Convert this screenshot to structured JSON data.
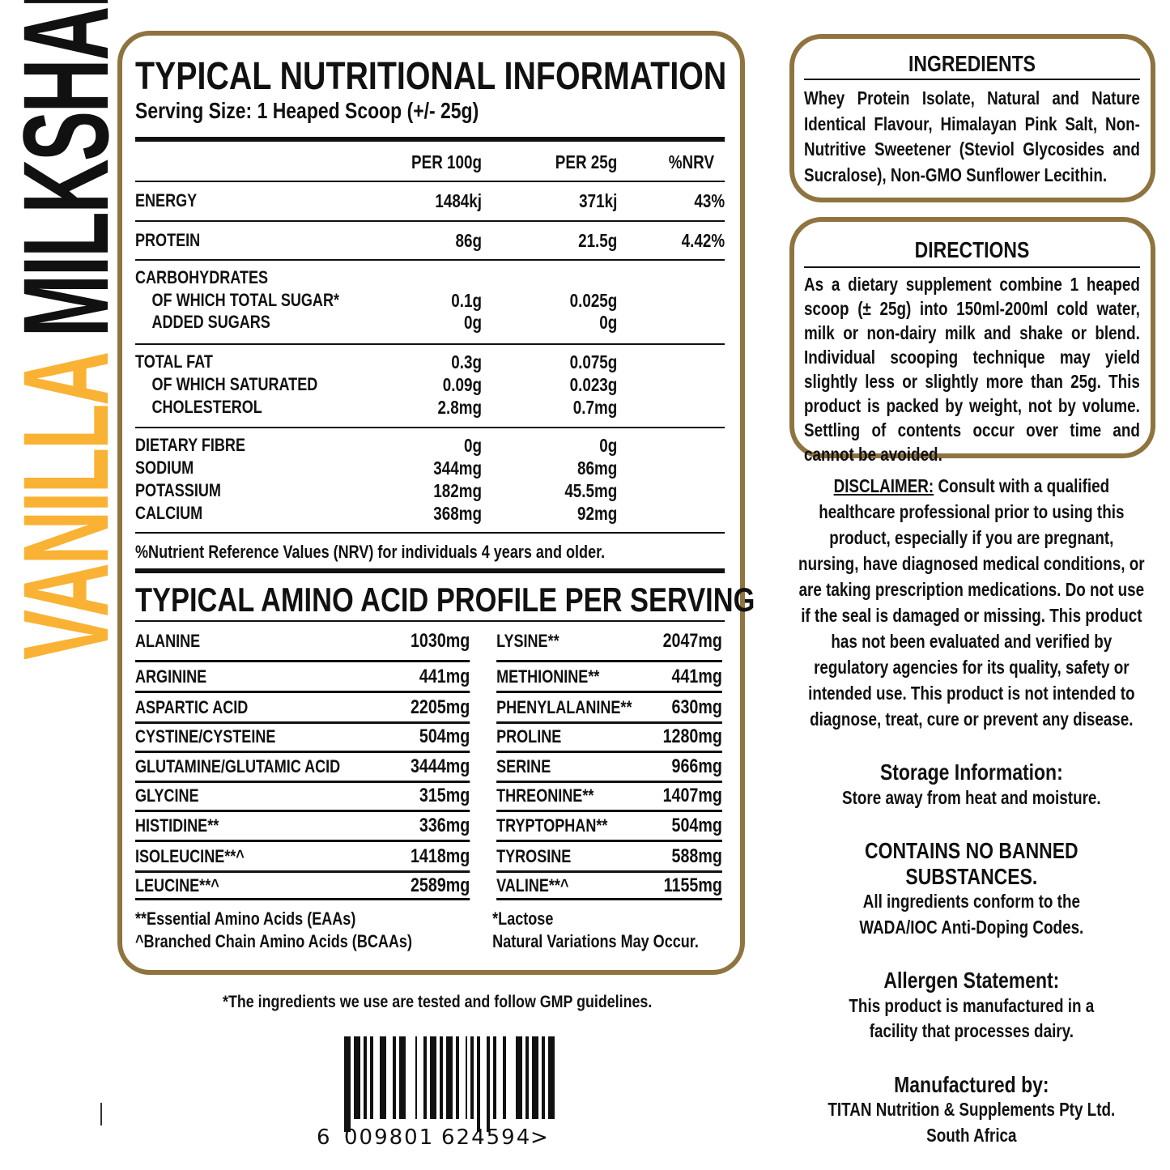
{
  "brand_title": {
    "flavour": "VANILLA",
    "product": "MILKSHAKE",
    "flavour_color": "#f9b233",
    "product_color": "#111111",
    "border_color": "#8f7440"
  },
  "nutrition": {
    "title": "TYPICAL NUTRITIONAL INFORMATION",
    "serving": "Serving Size: 1 Heaped Scoop (+/- 25g)",
    "headers": [
      "PER 100g",
      "PER 25g",
      "%NRV"
    ],
    "groups": [
      [
        {
          "label": "ENERGY",
          "per100": "1484kj",
          "per25": "371kj",
          "nrv": "43%"
        }
      ],
      [
        {
          "label": "PROTEIN",
          "per100": "86g",
          "per25": "21.5g",
          "nrv": "4.42%"
        }
      ],
      [
        {
          "label": "CARBOHYDRATES",
          "per100": "",
          "per25": "",
          "nrv": ""
        },
        {
          "label": "OF WHICH TOTAL SUGAR*",
          "per100": "0.1g",
          "per25": "0.025g",
          "nrv": "",
          "indent": true
        },
        {
          "label": "ADDED SUGARS",
          "per100": "0g",
          "per25": "0g",
          "nrv": "",
          "indent": true
        }
      ],
      [
        {
          "label": "TOTAL FAT",
          "per100": "0.3g",
          "per25": "0.075g",
          "nrv": ""
        },
        {
          "label": "OF WHICH SATURATED",
          "per100": "0.09g",
          "per25": "0.023g",
          "nrv": "",
          "indent": true
        },
        {
          "label": "CHOLESTEROL",
          "per100": "2.8mg",
          "per25": "0.7mg",
          "nrv": "",
          "indent": true
        }
      ],
      [
        {
          "label": "DIETARY FIBRE",
          "per100": "0g",
          "per25": "0g",
          "nrv": ""
        },
        {
          "label": "SODIUM",
          "per100": "344mg",
          "per25": "86mg",
          "nrv": ""
        },
        {
          "label": "POTASSIUM",
          "per100": "182mg",
          "per25": "45.5mg",
          "nrv": ""
        },
        {
          "label": "CALCIUM",
          "per100": "368mg",
          "per25": "92mg",
          "nrv": ""
        }
      ]
    ],
    "nrv_note": "%Nutrient Reference Values (NRV) for individuals 4 years and older."
  },
  "amino": {
    "title": "TYPICAL AMINO ACID PROFILE PER SERVING",
    "left": [
      [
        "ALANINE",
        "1030mg"
      ],
      [
        "ARGININE",
        "441mg"
      ],
      [
        "ASPARTIC ACID",
        "2205mg"
      ],
      [
        "CYSTINE/CYSTEINE",
        "504mg"
      ],
      [
        "GLUTAMINE/GLUTAMIC ACID",
        "3444mg"
      ],
      [
        "GLYCINE",
        "315mg"
      ],
      [
        "HISTIDINE**",
        "336mg"
      ],
      [
        "ISOLEUCINE**^",
        "1418mg"
      ],
      [
        "LEUCINE**^",
        "2589mg"
      ]
    ],
    "right": [
      [
        "LYSINE**",
        "2047mg"
      ],
      [
        "METHIONINE**",
        "441mg"
      ],
      [
        "PHENYLALANINE**",
        "630mg"
      ],
      [
        "PROLINE",
        "1280mg"
      ],
      [
        "SERINE",
        "966mg"
      ],
      [
        "THREONINE**",
        "1407mg"
      ],
      [
        "TRYPTOPHAN**",
        "504mg"
      ],
      [
        "TYROSINE",
        "588mg"
      ],
      [
        "VALINE**^",
        "1155mg"
      ]
    ],
    "notes_left": [
      "**Essential Amino Acids (EAAs)",
      "^Branched Chain Amino Acids (BCAAs)"
    ],
    "notes_right": [
      "*Lactose",
      "Natural Variations May Occur."
    ]
  },
  "gmp_note": "*The ingredients we use are tested and follow GMP guidelines.",
  "barcode": {
    "digits": [
      "6",
      "009801",
      "624594",
      ">"
    ]
  },
  "ingredients": {
    "title": "INGREDIENTS",
    "text": "Whey Protein Isolate, Natural and Nature Identical Flavour, Himalayan Pink Salt, Non-Nutritive Sweetener (Steviol Glycosides and Sucralose), Non-GMO Sunflower Lecithin."
  },
  "directions": {
    "title": "DIRECTIONS",
    "text": "As a dietary supplement combine 1 heaped scoop (± 25g) into 150ml-200ml cold water, milk or non-dairy milk and shake or blend. Individual scooping technique may yield slightly less or slightly more than 25g. This product is packed by weight, not by volume. Settling of contents occur over time and cannot be avoided."
  },
  "disclaimer": {
    "label": "DISCLAIMER:",
    "text": " Consult with a qualified healthcare professional prior to using this product, especially if you are pregnant, nursing, have diagnosed medical conditions, or are taking prescription medications. Do not use if the seal is damaged or missing. This product has not been evaluated and verified by regulatory agencies for its quality, safety or intended use. This product is not intended to diagnose, treat, cure or prevent any disease."
  },
  "storage": {
    "title": "Storage Information:",
    "text": "Store away from heat and moisture."
  },
  "banned": {
    "title": "CONTAINS NO BANNED SUBSTANCES.",
    "text": "All ingredients conform to the WADA/IOC Anti-Doping Codes."
  },
  "allergen": {
    "title": "Allergen Statement:",
    "text": "This product is manufactured in a facility that processes dairy."
  },
  "manufacturer": {
    "title": "Manufactured by:",
    "lines": [
      "TITAN Nutrition & Supplements Pty Ltd.",
      "South Africa"
    ]
  }
}
